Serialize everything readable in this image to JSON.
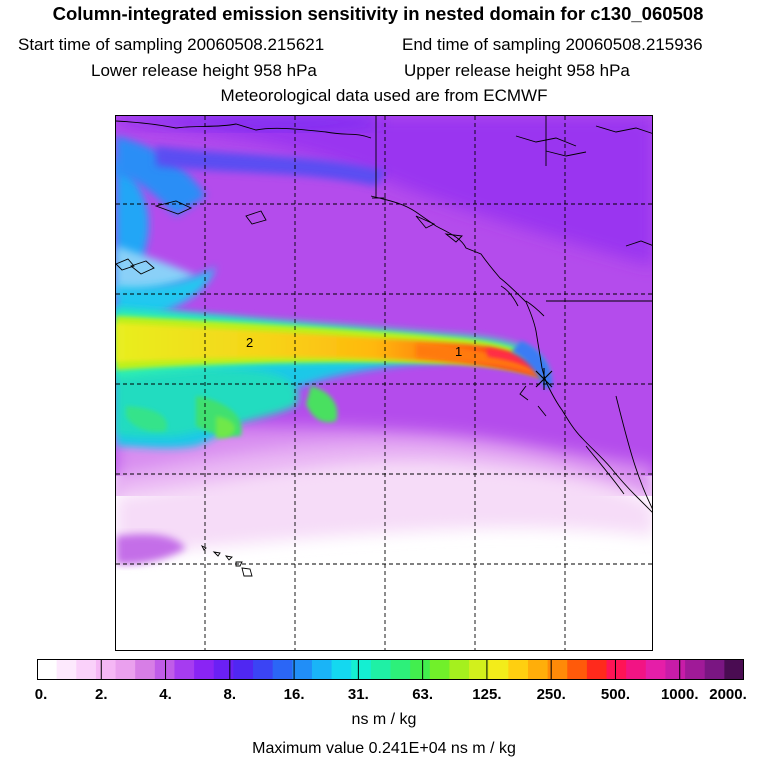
{
  "header": {
    "title": "Column-integrated emission sensitivity in nested domain for c130_060508",
    "start_label": "Start time of sampling 20060508.215621",
    "end_label": "End time of sampling 20060508.215936",
    "lower_label": "Lower release height  958 hPa",
    "upper_label": "Upper release height  958 hPa",
    "met_label": "Meteorological data used are from ECMWF"
  },
  "map": {
    "plume_labels": [
      "2",
      "1"
    ],
    "release_marker": "release-point-cross"
  },
  "colorbar": {
    "colors": [
      "#ffffff",
      "#fde9fd",
      "#fad1fa",
      "#f5b7f5",
      "#eaa0ee",
      "#d77ee6",
      "#c05ce8",
      "#a63cf0",
      "#8a24f4",
      "#6b20f4",
      "#5027f2",
      "#3b44f4",
      "#2b66f6",
      "#218ef7",
      "#1ab4f7",
      "#14d8f0",
      "#14efd2",
      "#1ff0a5",
      "#2df07a",
      "#42ee4e",
      "#71f02a",
      "#a5f01e",
      "#d2f01c",
      "#f3ec1a",
      "#ffcf10",
      "#ffae0a",
      "#ff8a08",
      "#ff5a0a",
      "#ff2a1c",
      "#ff1456",
      "#f21484",
      "#e51ea8",
      "#c81ca8",
      "#a01a98",
      "#7a1682",
      "#4a0c52"
    ],
    "tick_labels": [
      "0.",
      "2.",
      "4.",
      "8.",
      "16.",
      "31.",
      "63.",
      "125.",
      "250.",
      "500.",
      "1000.",
      "2000."
    ],
    "units": "ns m / kg"
  },
  "footer": {
    "max_value": "Maximum value  0.241E+04 ns m / kg"
  }
}
